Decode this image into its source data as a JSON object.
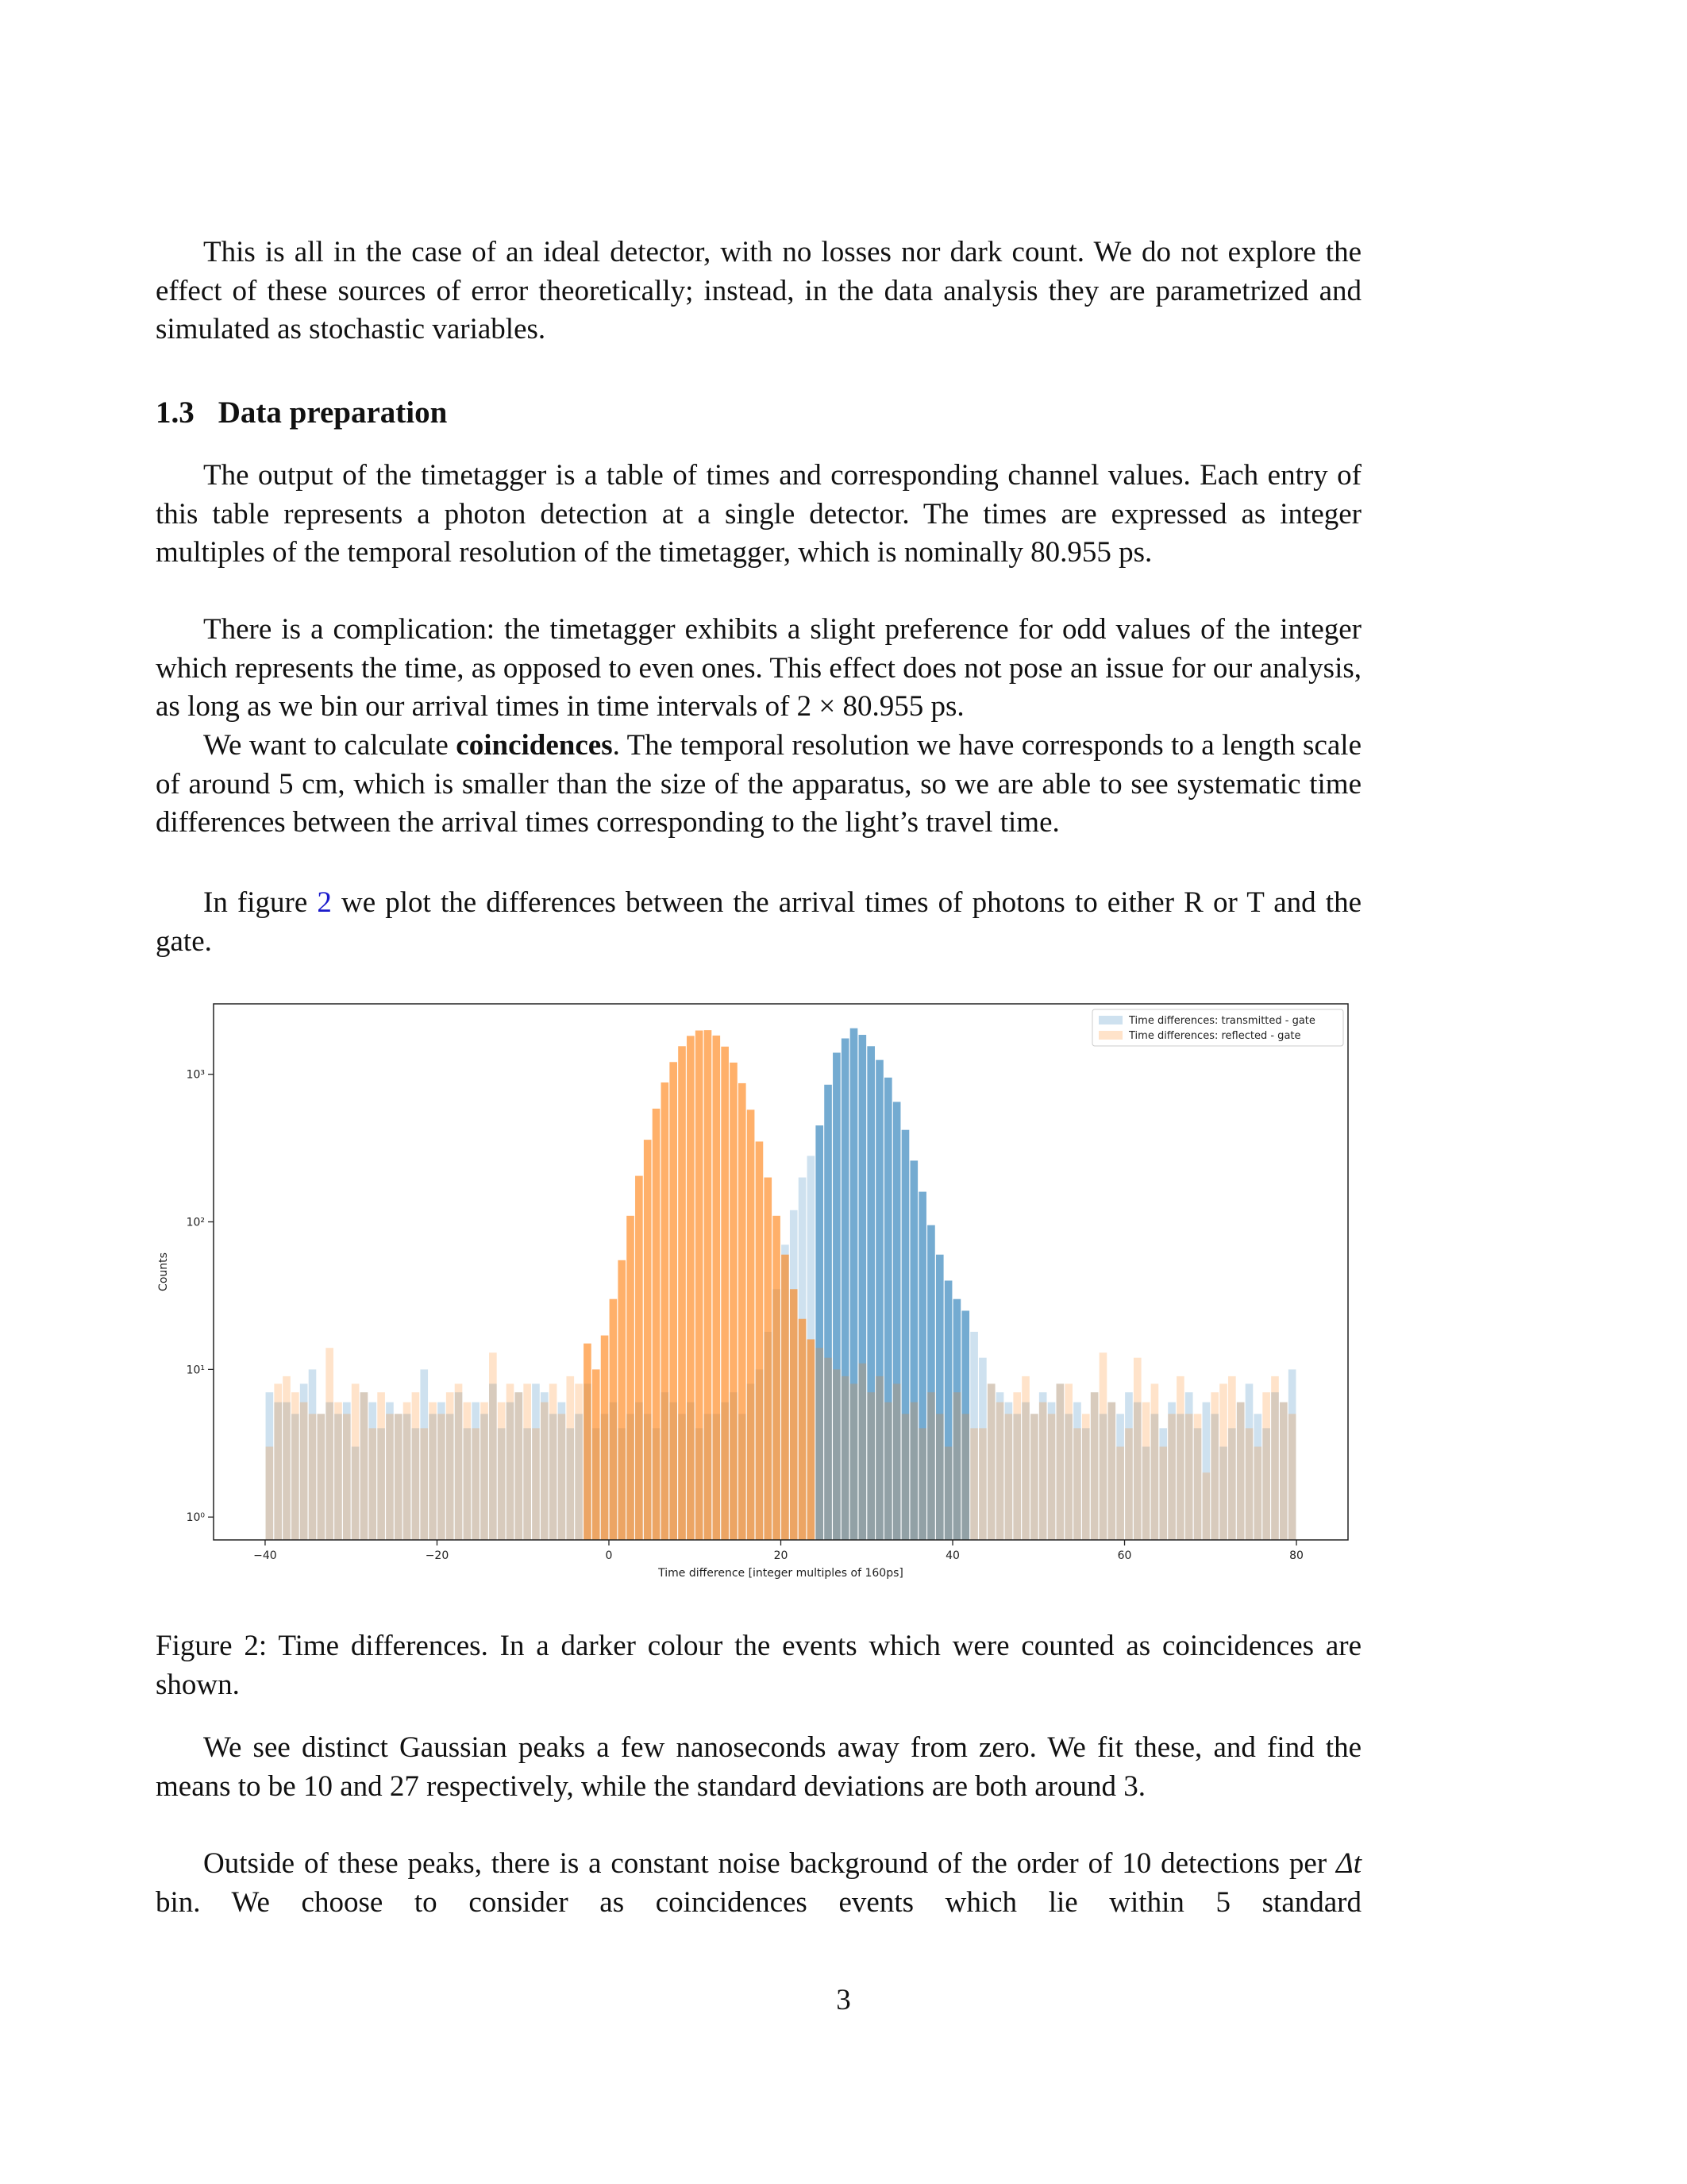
{
  "paragraphs": [
    {
      "parts": [
        "This is all in the case of an ideal detector, with no losses nor dark count.  We do not explore the effect of these sources of error theoretically; instead, in the data analysis they are parametrized and simulated as stochastic variables."
      ]
    },
    {
      "parts": [
        "The output of the timetagger is a table of times and corresponding channel values. Each entry of this table represents a photon detection at a single detector.  The times are expressed as integer multiples of the temporal resolution of the timetagger, which is nominally 80.955 ps."
      ]
    },
    {
      "parts": [
        "There is a complication: the timetagger exhibits a slight preference for odd values of the integer which represents the time, as opposed to even ones. This effect does not pose an issue for our analysis, as long as we bin our arrival times in time intervals of 2 × 80.955 ps."
      ]
    },
    {
      "parts": [
        "We want to calculate ",
        "coincidences",
        ". The temporal resolution we have corresponds to a length scale of around 5 cm, which is smaller than the size of the apparatus, so we are able to see systematic time differences between the arrival times corresponding to the light’s travel time."
      ]
    },
    {
      "parts": [
        "In figure ",
        "2",
        " we plot the differences between the arrival times of photons to either R or T and the gate."
      ]
    },
    {
      "parts": [
        "We see distinct Gaussian peaks a few nanoseconds away from zero.  We fit these, and find the means to be 10 and 27 respectively, while the standard deviations are both around 3."
      ]
    },
    {
      "parts": [
        "Outside of these peaks, there is a constant noise background of the order of 10 detections per ",
        "Δt",
        " bin.  We choose to consider as coincidences events which lie within 5 standard"
      ]
    }
  ],
  "heading": {
    "number": "1.3",
    "title": "Data preparation"
  },
  "caption": "Figure 2: Time differences. In a darker colour the events which were counted as coincidences are shown.",
  "page_number": "3",
  "chart_data": {
    "type": "histogram",
    "xlabel": "Time difference [integer multiples of 160ps]",
    "ylabel": "Counts",
    "bins": [
      -40,
      -39,
      -38,
      -37,
      -36,
      -35,
      -34,
      -33,
      -32,
      -31,
      -30,
      -29,
      -28,
      -27,
      -26,
      -25,
      -24,
      -23,
      -22,
      -21,
      -20,
      -19,
      -18,
      -17,
      -16,
      -15,
      -14,
      -13,
      -12,
      -11,
      -10,
      -9,
      -8,
      -7,
      -6,
      -5,
      -4,
      -3,
      -2,
      -1,
      0,
      1,
      2,
      3,
      4,
      5,
      6,
      7,
      8,
      9,
      10,
      11,
      12,
      13,
      14,
      15,
      16,
      17,
      18,
      19,
      20,
      21,
      22,
      23,
      24,
      25,
      26,
      27,
      28,
      29,
      30,
      31,
      32,
      33,
      34,
      35,
      36,
      37,
      38,
      39,
      40,
      41,
      42,
      43,
      44,
      45,
      46,
      47,
      48,
      49,
      50,
      51,
      52,
      53,
      54,
      55,
      56,
      57,
      58,
      59,
      60,
      61,
      62,
      63,
      64,
      65,
      66,
      67,
      68,
      69,
      70,
      71,
      72,
      73,
      74,
      75,
      76,
      77,
      78,
      79,
      80
    ],
    "series": [
      {
        "name": "Time differences: transmitted - gate",
        "color": "#1f77b4",
        "coincidence_range": [
          24,
          42
        ],
        "values": [
          7,
          6,
          6,
          5,
          8,
          10,
          5,
          6,
          5,
          6,
          3,
          7,
          6,
          4,
          6,
          5,
          5,
          4,
          10,
          5,
          6,
          5,
          7,
          4,
          6,
          5,
          8,
          4,
          6,
          7,
          4,
          8,
          7,
          5,
          6,
          4,
          5,
          8,
          4,
          5,
          6,
          4,
          5,
          6,
          5,
          4,
          7,
          6,
          5,
          6,
          4,
          5,
          5,
          6,
          7,
          5,
          8,
          10,
          18,
          35,
          70,
          120,
          200,
          280,
          450,
          850,
          1400,
          1750,
          2050,
          1850,
          1550,
          1250,
          950,
          650,
          420,
          260,
          160,
          95,
          60,
          40,
          30,
          25,
          18,
          12,
          8,
          7,
          6,
          5,
          6,
          5,
          7,
          6,
          8,
          5,
          6,
          4,
          7,
          5,
          6,
          5,
          7,
          6,
          3,
          5,
          4,
          6,
          5,
          7,
          4,
          6,
          5,
          3,
          4,
          6,
          8,
          5,
          4,
          7,
          6,
          10
        ]
      },
      {
        "name": "Time differences: reflected - gate",
        "color": "#ff7f0e",
        "coincidence_range": [
          -3,
          24
        ],
        "values": [
          3,
          8,
          9,
          7,
          6,
          5,
          5,
          14,
          6,
          5,
          8,
          7,
          4,
          7,
          5,
          5,
          6,
          7,
          4,
          6,
          5,
          7,
          8,
          6,
          4,
          6,
          13,
          6,
          8,
          7,
          8,
          4,
          6,
          8,
          5,
          9,
          8,
          15,
          10,
          17,
          30,
          55,
          110,
          205,
          360,
          585,
          880,
          1210,
          1550,
          1820,
          1980,
          1990,
          1830,
          1540,
          1200,
          870,
          575,
          350,
          200,
          110,
          60,
          35,
          22,
          16,
          14,
          12,
          10,
          9,
          8,
          11,
          7,
          9,
          6,
          8,
          5,
          6,
          4,
          7,
          5,
          3,
          7,
          5,
          4,
          4,
          8,
          6,
          5,
          7,
          9,
          5,
          6,
          5,
          8,
          8,
          4,
          5,
          7,
          13,
          6,
          3,
          4,
          12,
          6,
          8,
          3,
          5,
          9,
          5,
          5,
          2,
          7,
          8,
          9,
          6,
          4,
          3,
          7,
          9,
          6,
          5
        ]
      }
    ],
    "xlim": [
      -46,
      86
    ],
    "xticks": [
      {
        "value": -40,
        "label": "−40"
      },
      {
        "value": -20,
        "label": "−20"
      },
      0,
      20,
      40,
      60,
      80
    ],
    "ylim": [
      0.7,
      3000
    ],
    "yscale": "log",
    "yticks": [
      {
        "value": 1,
        "label": "10⁰"
      },
      {
        "value": 10,
        "label": "10¹"
      },
      {
        "value": 100,
        "label": "10²"
      },
      {
        "value": 1000,
        "label": "10³"
      }
    ],
    "legend": "upper right"
  }
}
